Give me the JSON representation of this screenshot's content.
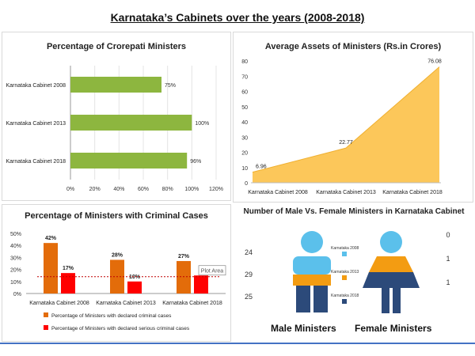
{
  "title": "Karnataka’s Cabinets over the years (2008-2018)",
  "chart_data": [
    {
      "type": "bar",
      "orientation": "horizontal",
      "title": "Percentage of Crorepati Ministers",
      "categories": [
        "Karnataka Cabinet 2008",
        "Karnataka Cabinet 2013",
        "Karnataka Cabinet 2018"
      ],
      "values": [
        75,
        100,
        96
      ],
      "value_labels": [
        "75%",
        "100%",
        "96%"
      ],
      "xticks": [
        "0%",
        "20%",
        "40%",
        "60%",
        "80%",
        "100%",
        "120%"
      ],
      "xlim": [
        0,
        120
      ],
      "color": "#8db63f"
    },
    {
      "type": "area",
      "title": "Average Assets of Ministers (Rs.in Crores)",
      "categories": [
        "Karnataka Cabinet 2008",
        "Karnataka Cabinet 2013",
        "Karnataka Cabinet 2018"
      ],
      "values": [
        6.96,
        22.77,
        76.08
      ],
      "value_labels": [
        "6.96",
        "22.77",
        "76.08"
      ],
      "yticks": [
        "0",
        "10",
        "20",
        "30",
        "40",
        "50",
        "60",
        "70",
        "80"
      ],
      "ylim": [
        0,
        80
      ],
      "color": "#fcc75a"
    },
    {
      "type": "bar",
      "title": "Percentage of Ministers with Criminal Cases",
      "categories": [
        "Karnataka Cabinet 2008",
        "Karnataka Cabinet 2013",
        "Karnataka Cabinet 2018"
      ],
      "series": [
        {
          "name": "Percentage of Ministers with declared criminal cases",
          "values": [
            42,
            28,
            27
          ],
          "labels": [
            "42%",
            "28%",
            "27%"
          ],
          "color": "#e36c0a"
        },
        {
          "name": "Percentage of Ministers with declared serious criminal cases",
          "values": [
            17,
            10,
            15
          ],
          "labels": [
            "17%",
            "10%",
            ""
          ],
          "color": "#ff0000"
        }
      ],
      "yticks": [
        "0%",
        "5%",
        "10%",
        "15%",
        "20%",
        "25%",
        "30%",
        "35%",
        "40%",
        "45%",
        "50%"
      ],
      "ylim": [
        0,
        50
      ],
      "reference_line": 14,
      "annotation": "Plot Area"
    },
    {
      "type": "infographic",
      "title": "Number of Male Vs. Female Ministers in Karnataka Cabinet",
      "legend": [
        "Karnataka 2008",
        "Karnataka 2013",
        "Karnataka 2018"
      ],
      "legend_colors": [
        "#5bc0eb",
        "#f39c12",
        "#2c4a7a"
      ],
      "male": {
        "label": "Male Ministers",
        "values": [
          "24",
          "29",
          "25"
        ]
      },
      "female": {
        "label": "Female Ministers",
        "values": [
          "0",
          "1",
          "1"
        ]
      }
    }
  ]
}
